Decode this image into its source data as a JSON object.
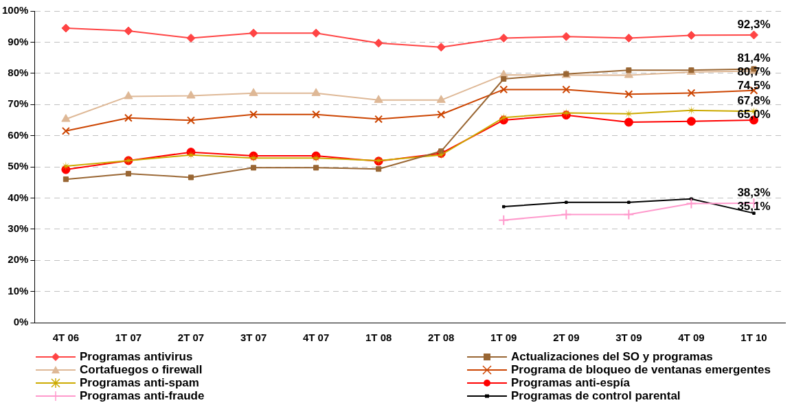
{
  "chart_data": {
    "type": "line",
    "categories": [
      "4T 06",
      "1T 07",
      "2T 07",
      "3T 07",
      "4T 07",
      "1T 08",
      "2T 08",
      "1T 09",
      "2T 09",
      "3T 09",
      "4T 09",
      "1T 10"
    ],
    "ylim": [
      0,
      100
    ],
    "yticks": [
      {
        "value": 0,
        "label": "0%"
      },
      {
        "value": 10,
        "label": "10%"
      },
      {
        "value": 20,
        "label": "20%"
      },
      {
        "value": 30,
        "label": "30%"
      },
      {
        "value": 40,
        "label": "40%"
      },
      {
        "value": 50,
        "label": "50%"
      },
      {
        "value": 60,
        "label": "60%"
      },
      {
        "value": 70,
        "label": "70%"
      },
      {
        "value": 80,
        "label": "80%"
      },
      {
        "value": 90,
        "label": "90%"
      },
      {
        "value": 100,
        "label": "100%"
      }
    ],
    "grid": "y",
    "legend": "bottom",
    "line_style": "solid",
    "series": [
      {
        "name": "Programas antivirus",
        "color": "#ff4444",
        "marker": "diamond",
        "values": [
          94.5,
          93.6,
          91.3,
          92.9,
          92.9,
          89.7,
          88.4,
          91.3,
          91.8,
          91.3,
          92.2,
          92.3
        ],
        "value_labels": [
          null,
          null,
          null,
          null,
          null,
          null,
          null,
          null,
          null,
          null,
          null,
          "92,3%"
        ]
      },
      {
        "name": "Actualizaciones del SO y programas",
        "color": "#996633",
        "marker": "square",
        "values": [
          46.0,
          47.8,
          46.6,
          49.7,
          49.7,
          49.3,
          55.0,
          78.2,
          79.8,
          81.0,
          81.0,
          81.4
        ],
        "value_labels": [
          null,
          null,
          null,
          null,
          null,
          null,
          null,
          null,
          null,
          null,
          null,
          "81,4%"
        ]
      },
      {
        "name": "Cortafuegos o firewall",
        "color": "#deb896",
        "marker": "triangle",
        "values": [
          65.3,
          72.6,
          72.8,
          73.6,
          73.6,
          71.4,
          71.4,
          79.5,
          79.4,
          79.4,
          80.4,
          80.7
        ],
        "value_labels": [
          null,
          null,
          null,
          null,
          null,
          null,
          null,
          null,
          null,
          null,
          null,
          "80,7%"
        ]
      },
      {
        "name": "Programa de bloqueo de ventanas emergentes",
        "color": "#cc4400",
        "marker": "cross",
        "values": [
          61.5,
          65.7,
          64.9,
          66.8,
          66.8,
          65.3,
          66.8,
          74.8,
          74.8,
          73.3,
          73.7,
          74.5
        ],
        "value_labels": [
          null,
          null,
          null,
          null,
          null,
          null,
          null,
          null,
          null,
          null,
          null,
          "74,5%"
        ]
      },
      {
        "name": "Programas anti-spam",
        "color": "#ccaa00",
        "marker": "star",
        "values": [
          50.2,
          52.0,
          53.8,
          52.8,
          52.8,
          52.0,
          53.8,
          65.8,
          67.3,
          67.0,
          68.1,
          67.8
        ],
        "value_labels": [
          null,
          null,
          null,
          null,
          null,
          null,
          null,
          null,
          null,
          null,
          null,
          "67,8%"
        ]
      },
      {
        "name": "Programas anti-espía",
        "color": "#ff0000",
        "marker": "circle",
        "values": [
          49.1,
          52.0,
          54.7,
          53.5,
          53.5,
          51.8,
          54.3,
          65.0,
          66.6,
          64.3,
          64.6,
          65.0
        ],
        "value_labels": [
          null,
          null,
          null,
          null,
          null,
          null,
          null,
          null,
          null,
          null,
          null,
          "65,0%"
        ]
      },
      {
        "name": "Programas anti-fraude",
        "color": "#ff99cc",
        "marker": "plus",
        "values": [
          null,
          null,
          null,
          null,
          null,
          null,
          null,
          32.9,
          34.7,
          34.7,
          38.2,
          38.3
        ],
        "value_labels": [
          null,
          null,
          null,
          null,
          null,
          null,
          null,
          null,
          null,
          null,
          null,
          "38,3%"
        ]
      },
      {
        "name": "Programas de control parental",
        "color": "#000000",
        "marker": "square",
        "values": [
          null,
          null,
          null,
          null,
          null,
          null,
          null,
          37.2,
          38.6,
          38.6,
          39.7,
          35.1
        ],
        "value_labels": [
          null,
          null,
          null,
          null,
          null,
          null,
          null,
          null,
          null,
          null,
          null,
          "35,1%"
        ]
      }
    ]
  }
}
